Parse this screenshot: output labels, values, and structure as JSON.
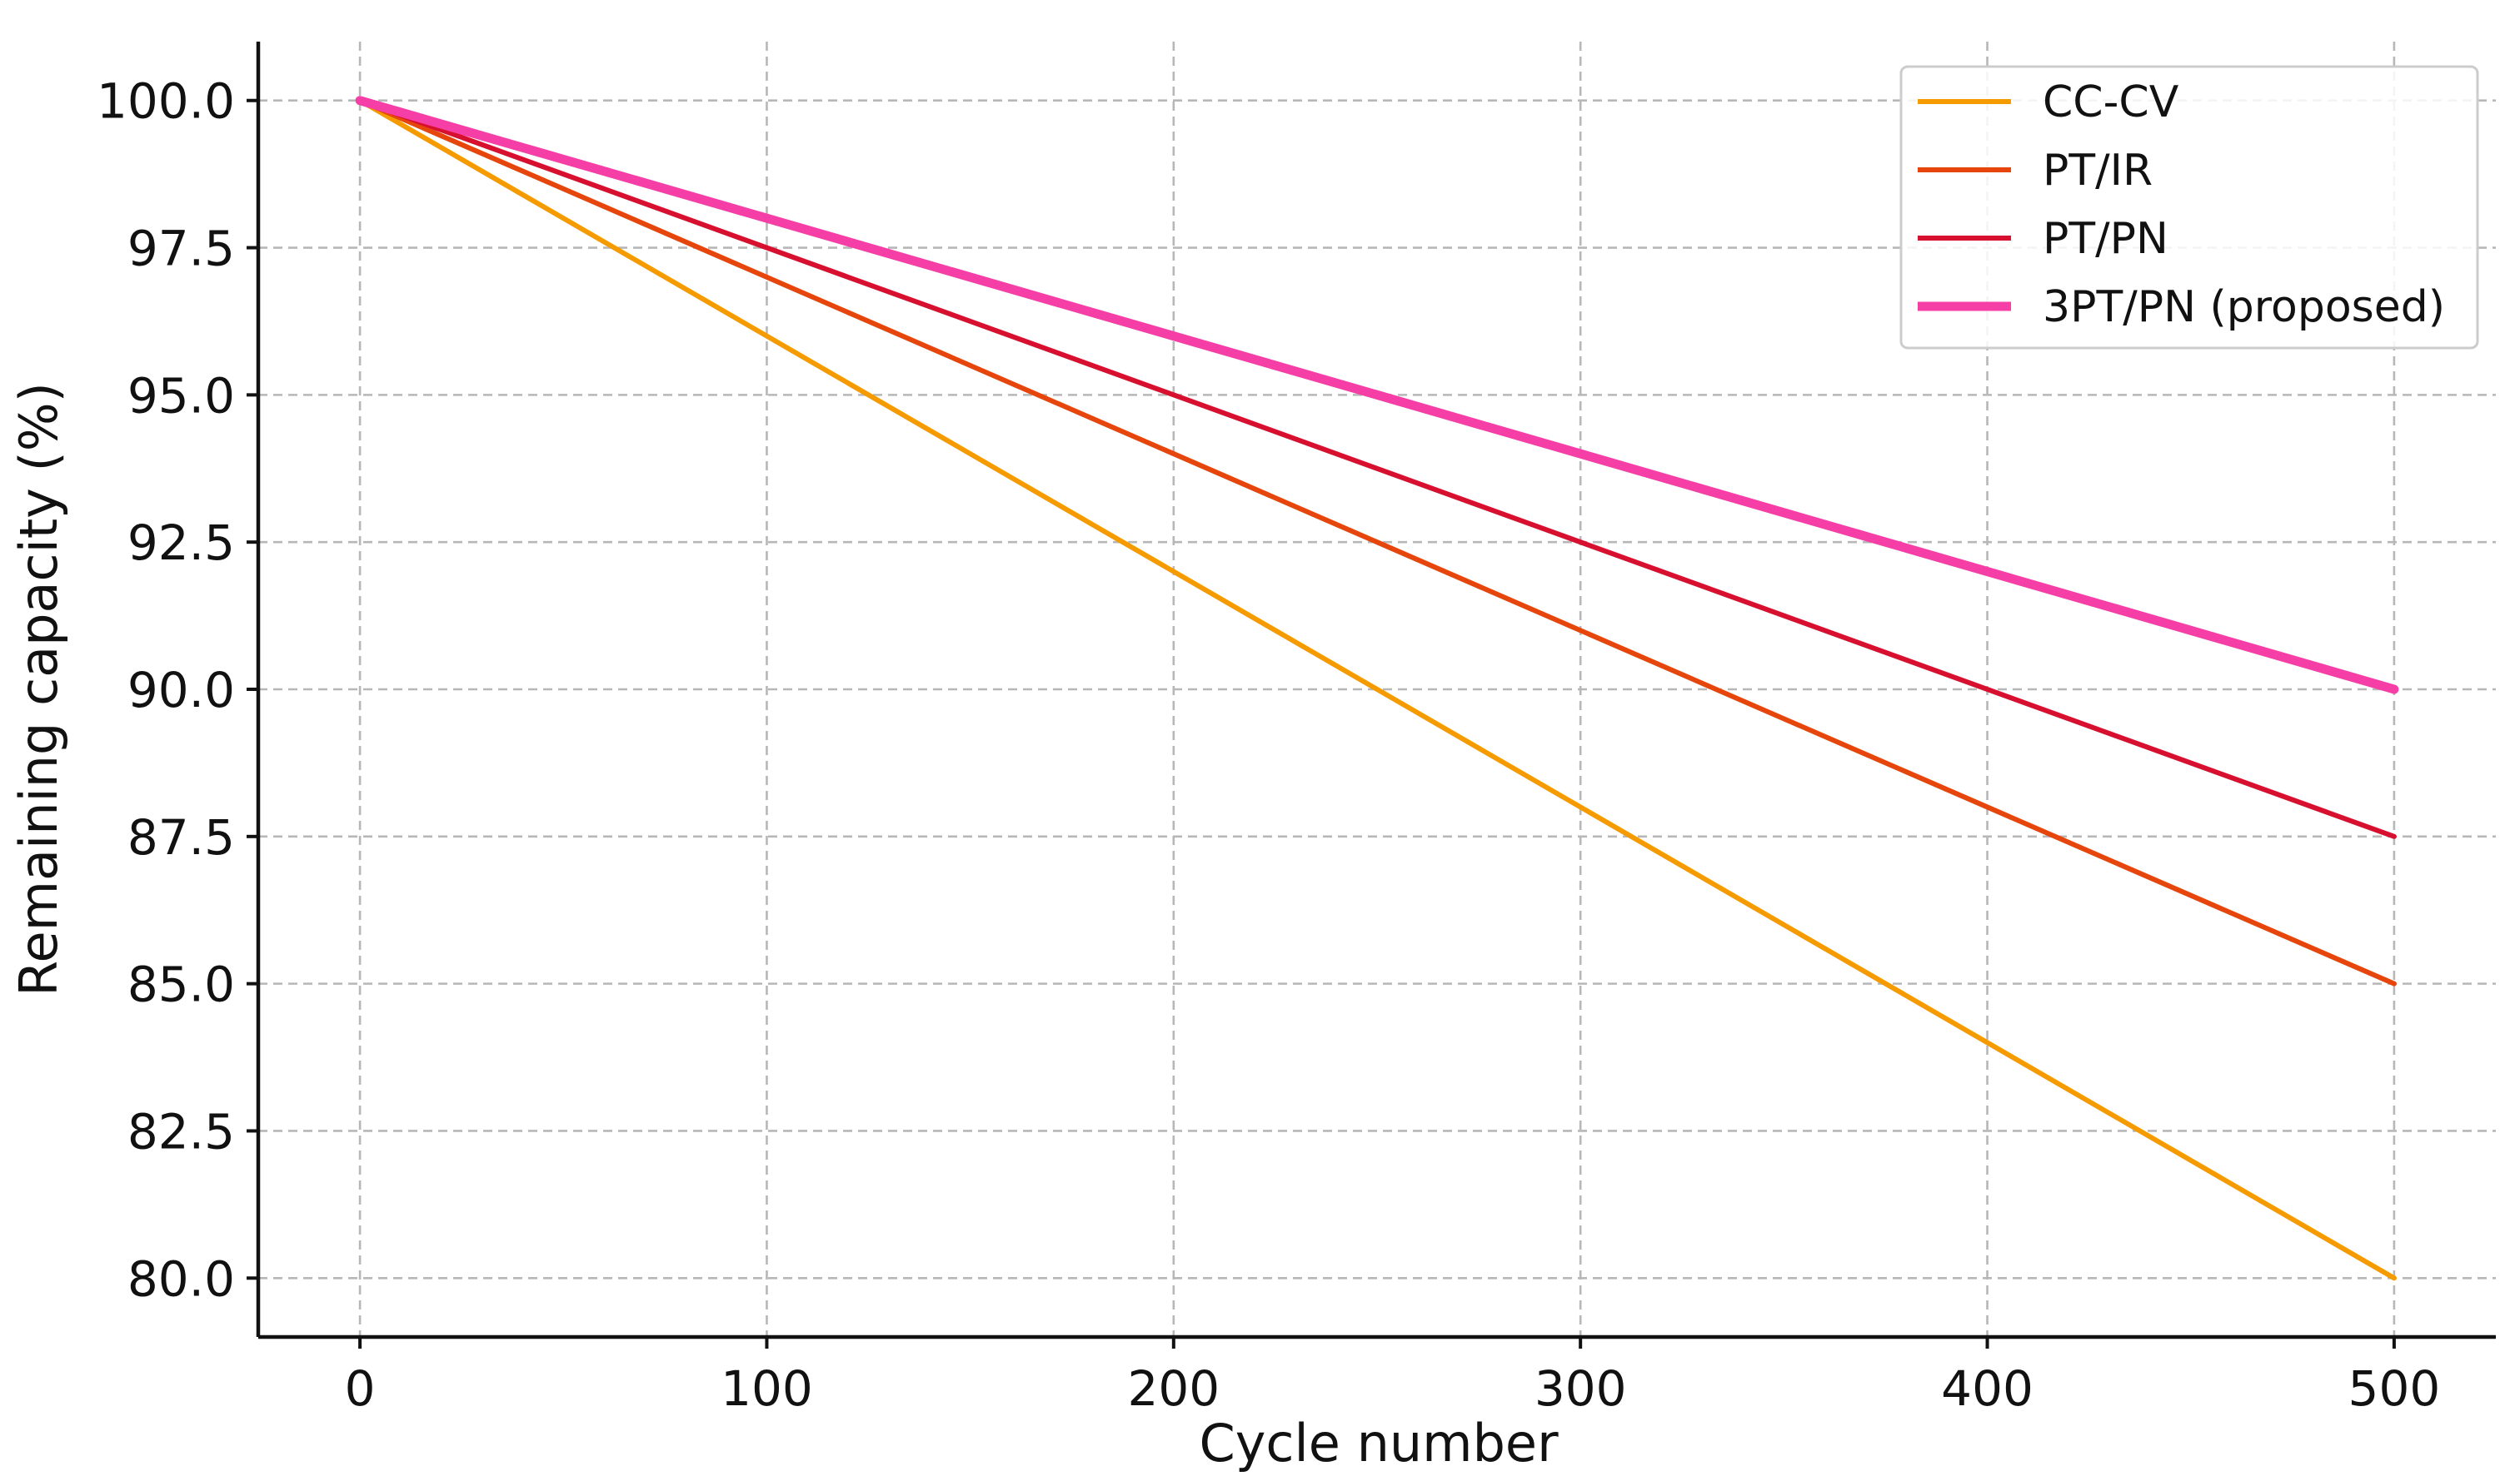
{
  "chart_data": {
    "type": "line",
    "title": "",
    "xlabel": "Cycle number",
    "ylabel": "Remaining capacity (%)",
    "xlim": [
      -25,
      525
    ],
    "ylim": [
      79.0,
      101.0
    ],
    "xticks": [
      0,
      100,
      200,
      300,
      400,
      500
    ],
    "xtick_labels": [
      "0",
      "100",
      "200",
      "300",
      "400",
      "500"
    ],
    "yticks": [
      80.0,
      82.5,
      85.0,
      87.5,
      90.0,
      92.5,
      95.0,
      97.5,
      100.0
    ],
    "ytick_labels": [
      "80.0",
      "82.5",
      "85.0",
      "87.5",
      "90.0",
      "92.5",
      "95.0",
      "97.5",
      "100.0"
    ],
    "grid": true,
    "legend_position": "top-right",
    "x": [
      0,
      500
    ],
    "series": [
      {
        "name": "CC-CV",
        "values": [
          100.0,
          80.0
        ],
        "color": "#f59b00",
        "weight": "normal"
      },
      {
        "name": "PT/IR",
        "values": [
          100.0,
          85.0
        ],
        "color": "#e6460c",
        "weight": "normal"
      },
      {
        "name": "PT/PN",
        "values": [
          100.0,
          87.5
        ],
        "color": "#d8102f",
        "weight": "normal"
      },
      {
        "name": "3PT/PN (proposed)",
        "values": [
          100.0,
          90.0
        ],
        "color": "#f53fa6",
        "weight": "bold"
      }
    ]
  }
}
